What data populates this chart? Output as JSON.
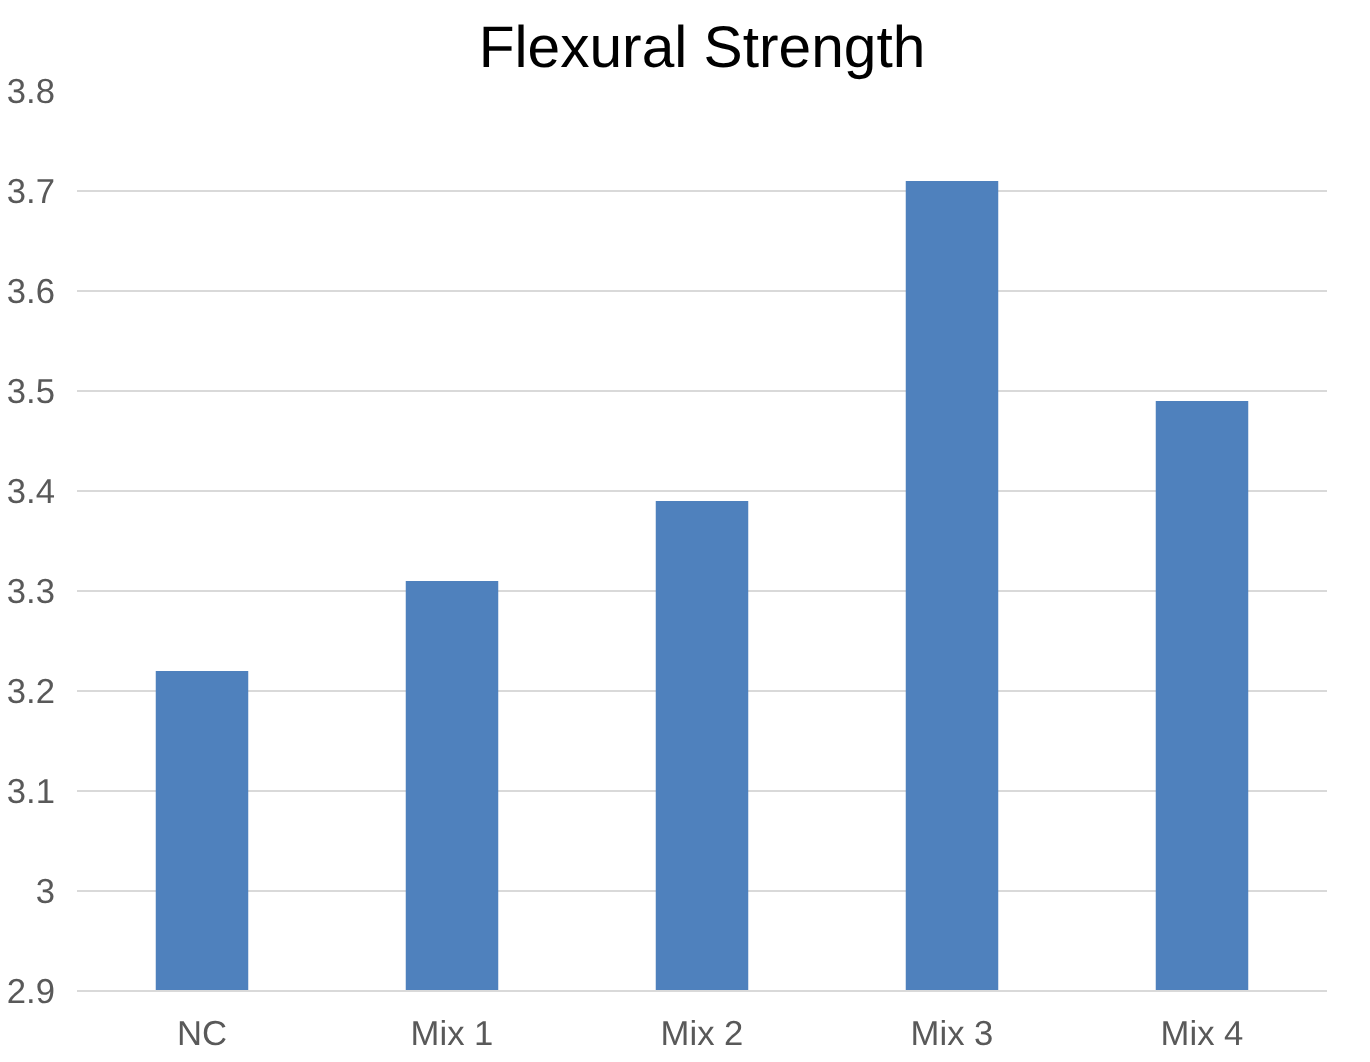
{
  "chart_data": {
    "type": "bar",
    "title": "Flexural Strength",
    "categories": [
      "NC",
      "Mix 1",
      "Mix 2",
      "Mix 3",
      "Mix 4"
    ],
    "values": [
      3.22,
      3.31,
      3.39,
      3.71,
      3.49
    ],
    "color": "#4f81bd",
    "ylim": [
      2.9,
      3.8
    ],
    "yticks": [
      2.9,
      3,
      3.1,
      3.2,
      3.3,
      3.4,
      3.5,
      3.6,
      3.7,
      3.8
    ],
    "grid": "y"
  }
}
